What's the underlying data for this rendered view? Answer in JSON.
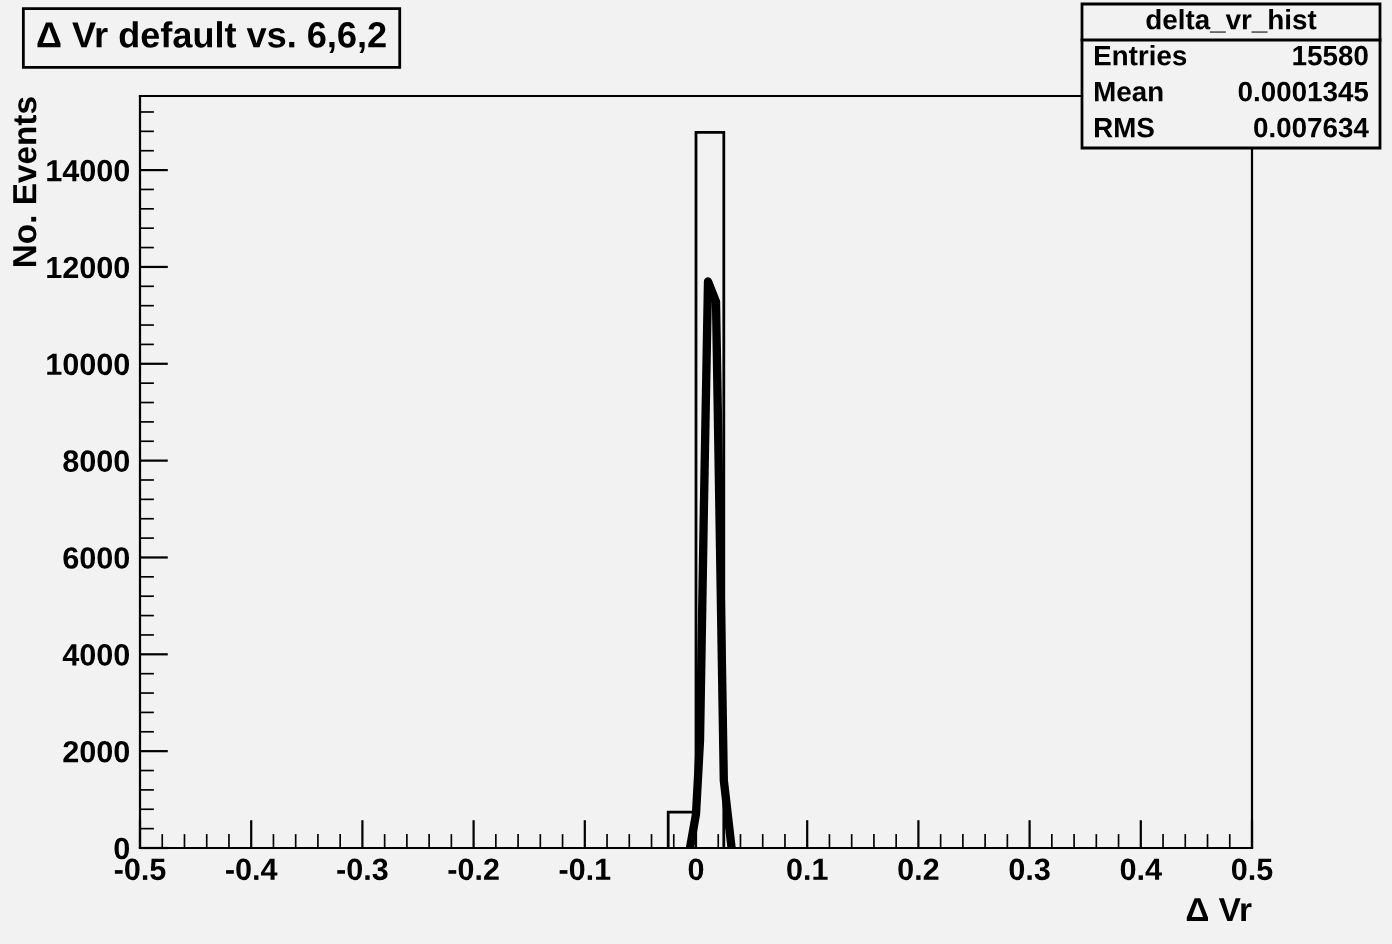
{
  "chart_data": {
    "type": "histogram",
    "title": "Δ Vr default vs. 6,6,2",
    "xlabel": "Δ Vr",
    "ylabel": "No. Events",
    "bins": [
      -0.025,
      0,
      0.025
    ],
    "values": [
      740,
      14780
    ],
    "color": "#000000",
    "series": [
      {
        "type": "line",
        "color": "#000000",
        "x": [
          -0.0054,
          0,
          0.0036,
          0.0072,
          0.0108,
          0.018,
          0.0216,
          0.025,
          0.032
        ],
        "values": [
          0,
          700,
          2220,
          7160,
          11700,
          11280,
          6220,
          1400,
          0
        ]
      }
    ],
    "xlim": [
      -0.5,
      0.5
    ],
    "xticks": [
      -0.5,
      -0.4,
      -0.3,
      -0.2,
      -0.1,
      0,
      0.1,
      0.2,
      0.3,
      0.4,
      0.5
    ],
    "ylim": [
      0,
      15530
    ],
    "yticks": [
      0,
      2000,
      4000,
      6000,
      8000,
      10000,
      12000,
      14000
    ],
    "annotations": [
      "delta_vr_hist",
      "Entries 15580",
      "Mean 0.0001345",
      "RMS 0.007634"
    ]
  }
}
